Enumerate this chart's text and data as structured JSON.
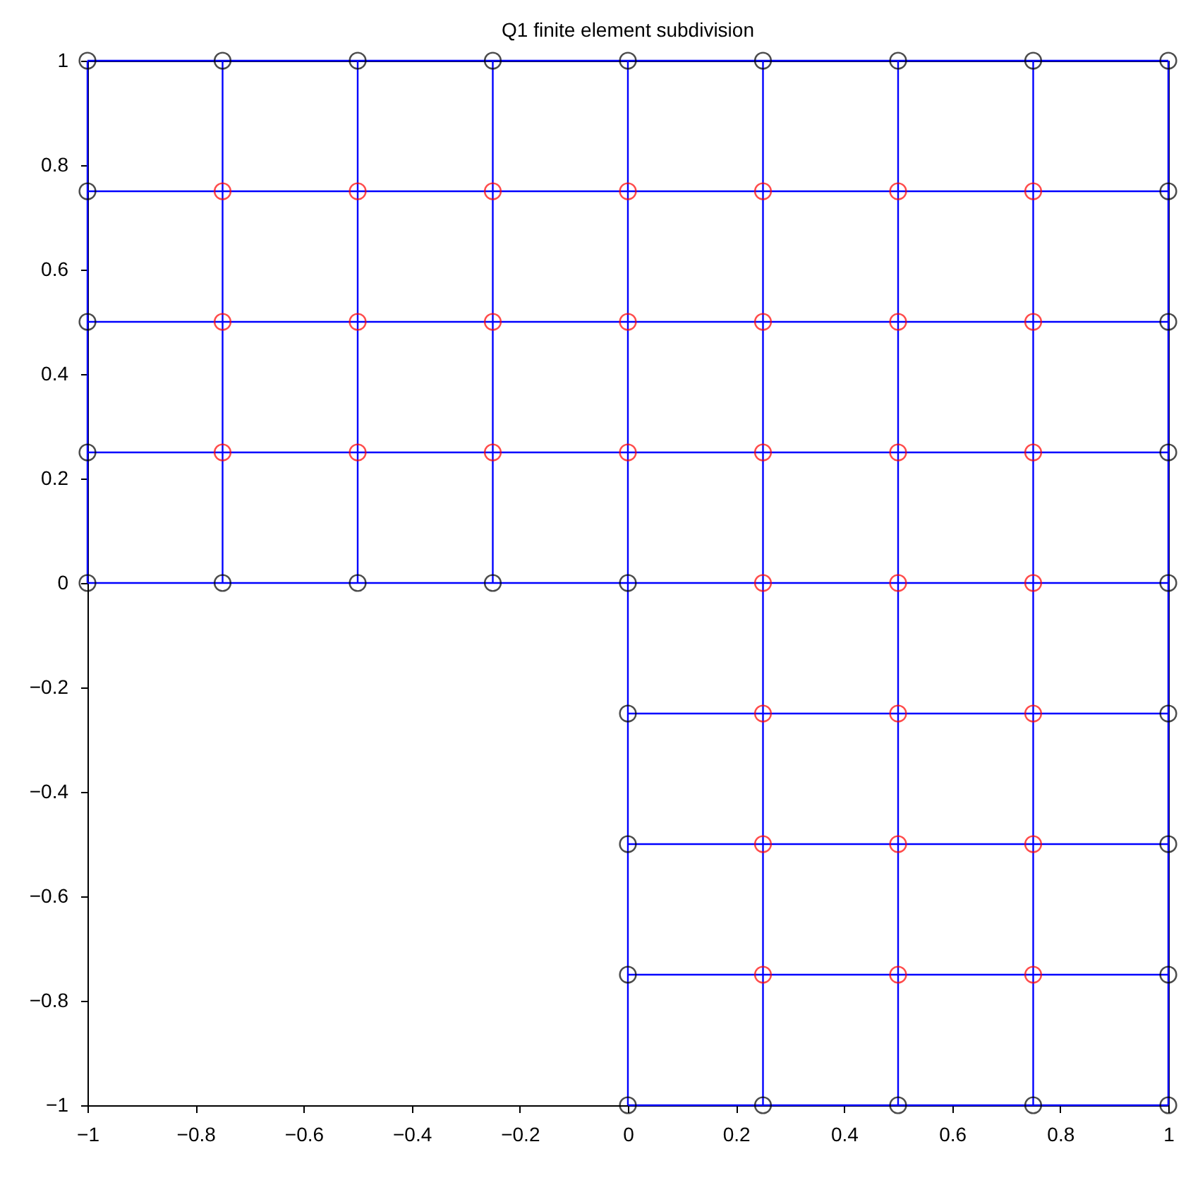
{
  "chart_data": {
    "type": "scatter",
    "title": "Q1 finite element subdivision",
    "xlim": [
      -1,
      1
    ],
    "ylim": [
      -1,
      1
    ],
    "xticks": [
      {
        "value": -1,
        "label": "−1"
      },
      {
        "value": -0.8,
        "label": "−0.8"
      },
      {
        "value": -0.6,
        "label": "−0.6"
      },
      {
        "value": -0.4,
        "label": "−0.4"
      },
      {
        "value": -0.2,
        "label": "−0.2"
      },
      0,
      0.2,
      0.4,
      0.6,
      0.8,
      1
    ],
    "yticks": [
      {
        "value": -1,
        "label": "−1"
      },
      {
        "value": -0.8,
        "label": "−0.8"
      },
      {
        "value": -0.6,
        "label": "−0.6"
      },
      {
        "value": -0.4,
        "label": "−0.4"
      },
      {
        "value": -0.2,
        "label": "−0.2"
      },
      0,
      0.2,
      0.4,
      0.6,
      0.8,
      1
    ],
    "grid": false,
    "line_style": "solid",
    "series": [
      {
        "type": "line",
        "color": "#0000ff",
        "x": [
          -1,
          1
        ],
        "values": [
          1,
          1
        ]
      },
      {
        "type": "line",
        "color": "#0000ff",
        "x": [
          -1,
          1
        ],
        "values": [
          0.75,
          0.75
        ]
      },
      {
        "type": "line",
        "color": "#0000ff",
        "x": [
          -1,
          1
        ],
        "values": [
          0.5,
          0.5
        ]
      },
      {
        "type": "line",
        "color": "#0000ff",
        "x": [
          -1,
          1
        ],
        "values": [
          0.25,
          0.25
        ]
      },
      {
        "type": "line",
        "color": "#0000ff",
        "x": [
          -1,
          1
        ],
        "values": [
          0,
          0
        ]
      },
      {
        "type": "line",
        "color": "#0000ff",
        "x": [
          0,
          1
        ],
        "values": [
          -0.25,
          -0.25
        ]
      },
      {
        "type": "line",
        "color": "#0000ff",
        "x": [
          0,
          1
        ],
        "values": [
          -0.5,
          -0.5
        ]
      },
      {
        "type": "line",
        "color": "#0000ff",
        "x": [
          0,
          1
        ],
        "values": [
          -0.75,
          -0.75
        ]
      },
      {
        "type": "line",
        "color": "#0000ff",
        "x": [
          0,
          1
        ],
        "values": [
          -1,
          -1
        ]
      },
      {
        "type": "line",
        "color": "#0000ff",
        "x": [
          -1,
          -1
        ],
        "values": [
          0,
          1
        ]
      },
      {
        "type": "line",
        "color": "#0000ff",
        "x": [
          -0.75,
          -0.75
        ],
        "values": [
          0,
          1
        ]
      },
      {
        "type": "line",
        "color": "#0000ff",
        "x": [
          -0.5,
          -0.5
        ],
        "values": [
          0,
          1
        ]
      },
      {
        "type": "line",
        "color": "#0000ff",
        "x": [
          -0.25,
          -0.25
        ],
        "values": [
          0,
          1
        ]
      },
      {
        "type": "line",
        "color": "#0000ff",
        "x": [
          0,
          0
        ],
        "values": [
          -1,
          1
        ]
      },
      {
        "type": "line",
        "color": "#0000ff",
        "x": [
          0.25,
          0.25
        ],
        "values": [
          -1,
          1
        ]
      },
      {
        "type": "line",
        "color": "#0000ff",
        "x": [
          0.5,
          0.5
        ],
        "values": [
          -1,
          1
        ]
      },
      {
        "type": "line",
        "color": "#0000ff",
        "x": [
          0.75,
          0.75
        ],
        "values": [
          -1,
          1
        ]
      },
      {
        "type": "line",
        "color": "#0000ff",
        "x": [
          1,
          1
        ],
        "values": [
          -1,
          1
        ]
      },
      {
        "marker": "circle",
        "color": "#000000",
        "x": [
          -1,
          -0.75,
          -0.5,
          -0.25,
          0,
          0.25,
          0.5,
          0.75,
          1,
          -1,
          -1,
          -1,
          -1,
          -0.75,
          -0.5,
          -0.25,
          0,
          0,
          0,
          0,
          0,
          0.25,
          0.5,
          0.75,
          1,
          1,
          1,
          1,
          1,
          1,
          1,
          1
        ],
        "values": [
          1,
          1,
          1,
          1,
          1,
          1,
          1,
          1,
          1,
          0.75,
          0.5,
          0.25,
          0,
          0,
          0,
          0,
          0,
          -0.25,
          -0.5,
          -0.75,
          -1,
          -1,
          -1,
          -1,
          -1,
          0.75,
          0.5,
          0.25,
          0,
          -0.25,
          -0.5,
          -0.75
        ]
      },
      {
        "marker": "circle",
        "color": "#ff0000",
        "x": [
          -0.75,
          -0.5,
          -0.25,
          0,
          0.25,
          0.5,
          0.75,
          -0.75,
          -0.5,
          -0.25,
          0,
          0.25,
          0.5,
          0.75,
          -0.75,
          -0.5,
          -0.25,
          0,
          0.25,
          0.5,
          0.75,
          0.25,
          0.5,
          0.75,
          0.25,
          0.5,
          0.75,
          0.25,
          0.5,
          0.75,
          0.25,
          0.5,
          0.75
        ],
        "values": [
          0.75,
          0.75,
          0.75,
          0.75,
          0.75,
          0.75,
          0.75,
          0.5,
          0.5,
          0.5,
          0.5,
          0.5,
          0.5,
          0.5,
          0.25,
          0.25,
          0.25,
          0.25,
          0.25,
          0.25,
          0.25,
          0,
          0,
          0,
          -0.25,
          -0.25,
          -0.25,
          -0.5,
          -0.5,
          -0.5,
          -0.75,
          -0.75,
          -0.75
        ]
      }
    ]
  }
}
